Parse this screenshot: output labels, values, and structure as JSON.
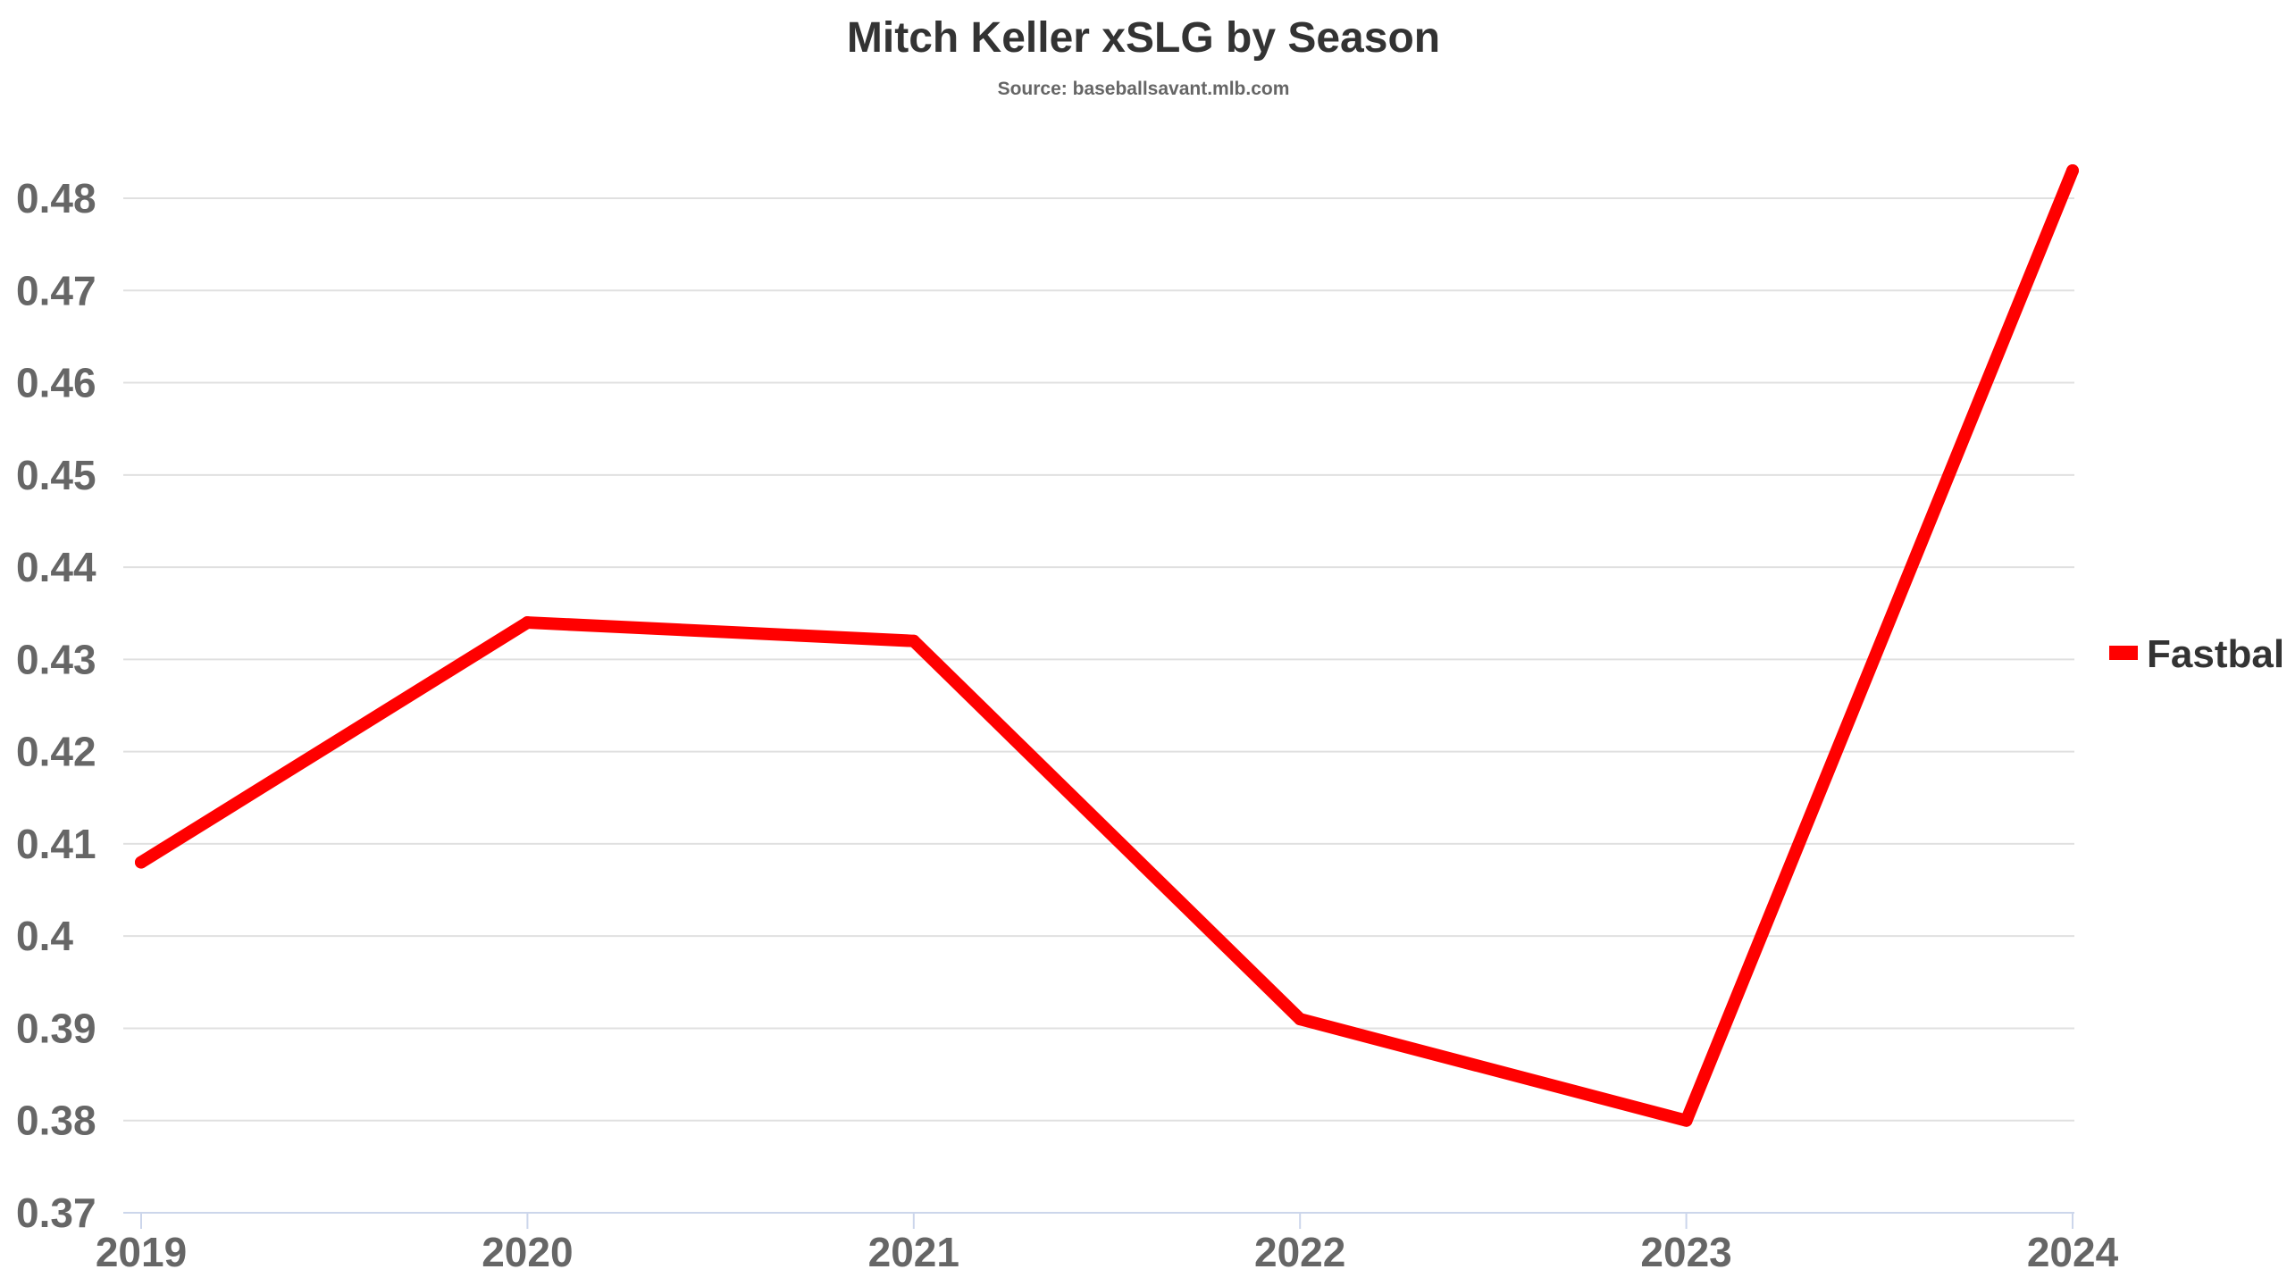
{
  "chart_data": {
    "type": "line",
    "title": "Mitch Keller xSLG by Season",
    "subtitle": "Source: baseballsavant.mlb.com",
    "xlabel": "",
    "ylabel": "",
    "categories": [
      "2019",
      "2020",
      "2021",
      "2022",
      "2023",
      "2024"
    ],
    "y_ticks": [
      "0.37",
      "0.38",
      "0.39",
      "0.4",
      "0.41",
      "0.42",
      "0.43",
      "0.44",
      "0.45",
      "0.46",
      "0.47",
      "0.48"
    ],
    "ylim": [
      0.37,
      0.48
    ],
    "grid": true,
    "legend_position": "right",
    "series": [
      {
        "name": "Fastball",
        "color": "#ff0000",
        "values": [
          0.408,
          0.434,
          0.432,
          0.391,
          0.38,
          0.483
        ]
      }
    ]
  }
}
